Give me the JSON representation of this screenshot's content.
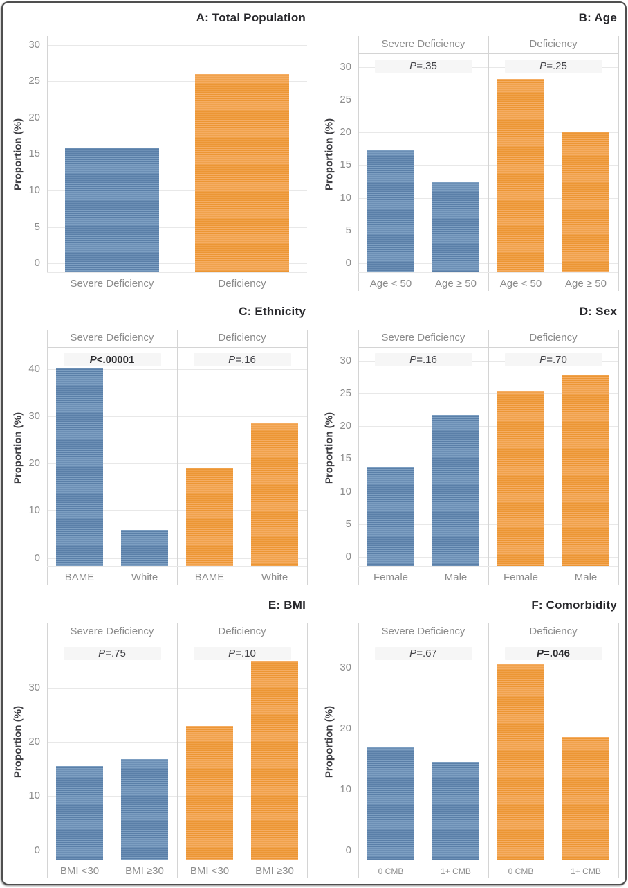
{
  "style": {
    "background": "#ffffff",
    "frame_border": "#4f4f4f",
    "bar_blue_light": "#7d9fc2",
    "bar_blue_dark": "#5a7fa8",
    "bar_orange_light": "#f5ad63",
    "bar_orange_dark": "#ec9634",
    "gridline": "#e8e8e8",
    "axis_line": "#d4d4d4",
    "tick_text": "#8c8c8c",
    "title_text": "#28282c",
    "annotation_text": "#3f3f44",
    "p_band_bg": "#f6f6f6"
  },
  "chart_data": [
    {
      "panel": "A",
      "type": "bar",
      "title": "A: Total Population",
      "ylabel": "Proportion (%)",
      "yticks": [
        0,
        5,
        10,
        15,
        20,
        25,
        30
      ],
      "ylim": [
        -1.3,
        31.2
      ],
      "categories": [
        "Severe Deficiency",
        "Deficiency"
      ],
      "values": [
        15.9,
        26.0
      ],
      "bar_colors": [
        "blue",
        "orange"
      ]
    },
    {
      "panel": "B",
      "type": "bar",
      "title": "B: Age",
      "ylabel": "Proportion (%)",
      "yticks": [
        0,
        5,
        10,
        15,
        20,
        25,
        30
      ],
      "ylim": [
        -1.5,
        32.0
      ],
      "facet_headers": [
        "Severe Deficiency",
        "Deficiency"
      ],
      "p_values": [
        {
          "text": "P=.35",
          "bold": false
        },
        {
          "text": "P=.25",
          "bold": false
        }
      ],
      "categories": [
        "Age < 50",
        "Age ≥ 50",
        "Age < 50",
        "Age ≥ 50"
      ],
      "values": [
        17.3,
        12.4,
        28.2,
        20.1
      ],
      "bar_colors": [
        "blue",
        "blue",
        "orange",
        "orange"
      ]
    },
    {
      "panel": "C",
      "type": "bar",
      "title": "C: Ethnicity",
      "ylabel": "Proportion (%)",
      "yticks": [
        0,
        10,
        20,
        30,
        40
      ],
      "ylim": [
        -1.8,
        44.5
      ],
      "facet_headers": [
        "Severe Deficiency",
        "Deficiency"
      ],
      "p_values": [
        {
          "text": "P<.00001",
          "bold": true
        },
        {
          "text": "P=.16",
          "bold": false
        }
      ],
      "categories": [
        "BAME",
        "White",
        "BAME",
        "White"
      ],
      "values": [
        40.2,
        6.0,
        19.1,
        28.6
      ],
      "bar_colors": [
        "blue",
        "blue",
        "orange",
        "orange"
      ]
    },
    {
      "panel": "D",
      "type": "bar",
      "title": "D: Sex",
      "ylabel": "Proportion (%)",
      "yticks": [
        0,
        5,
        10,
        15,
        20,
        25,
        30
      ],
      "ylim": [
        -1.5,
        32.0
      ],
      "facet_headers": [
        "Severe Deficiency",
        "Deficiency"
      ],
      "p_values": [
        {
          "text": "P=.16",
          "bold": false
        },
        {
          "text": "P=.70",
          "bold": false
        }
      ],
      "categories": [
        "Female",
        "Male",
        "Female",
        "Male"
      ],
      "values": [
        13.8,
        21.7,
        25.3,
        27.9
      ],
      "bar_colors": [
        "blue",
        "blue",
        "orange",
        "orange"
      ]
    },
    {
      "panel": "E",
      "type": "bar",
      "title": "E: BMI",
      "ylabel": "Proportion (%)",
      "yticks": [
        0,
        10,
        20,
        30
      ],
      "ylim": [
        -1.8,
        38.5
      ],
      "facet_headers": [
        "Severe Deficiency",
        "Deficiency"
      ],
      "p_values": [
        {
          "text": "P=.75",
          "bold": false
        },
        {
          "text": "P=.10",
          "bold": false
        }
      ],
      "categories": [
        "BMI <30",
        "BMI ≥30",
        "BMI <30",
        "BMI ≥30"
      ],
      "values": [
        15.5,
        16.8,
        23.0,
        34.8
      ],
      "bar_colors": [
        "blue",
        "blue",
        "orange",
        "orange"
      ]
    },
    {
      "panel": "F",
      "type": "bar",
      "title": "F: Comorbidity",
      "ylabel": "Proportion (%)",
      "yticks": [
        0,
        10,
        20,
        30
      ],
      "ylim": [
        -1.6,
        34.3
      ],
      "facet_headers": [
        "Severe Deficiency",
        "Deficiency"
      ],
      "p_values": [
        {
          "text": "P=.67",
          "bold": false
        },
        {
          "text": "P=.046",
          "bold": true
        }
      ],
      "categories": [
        "0 CMB",
        "1+ CMB",
        "0 CMB",
        "1+ CMB"
      ],
      "values": [
        16.9,
        14.5,
        30.5,
        18.6
      ],
      "bar_colors": [
        "blue",
        "blue",
        "orange",
        "orange"
      ]
    }
  ]
}
